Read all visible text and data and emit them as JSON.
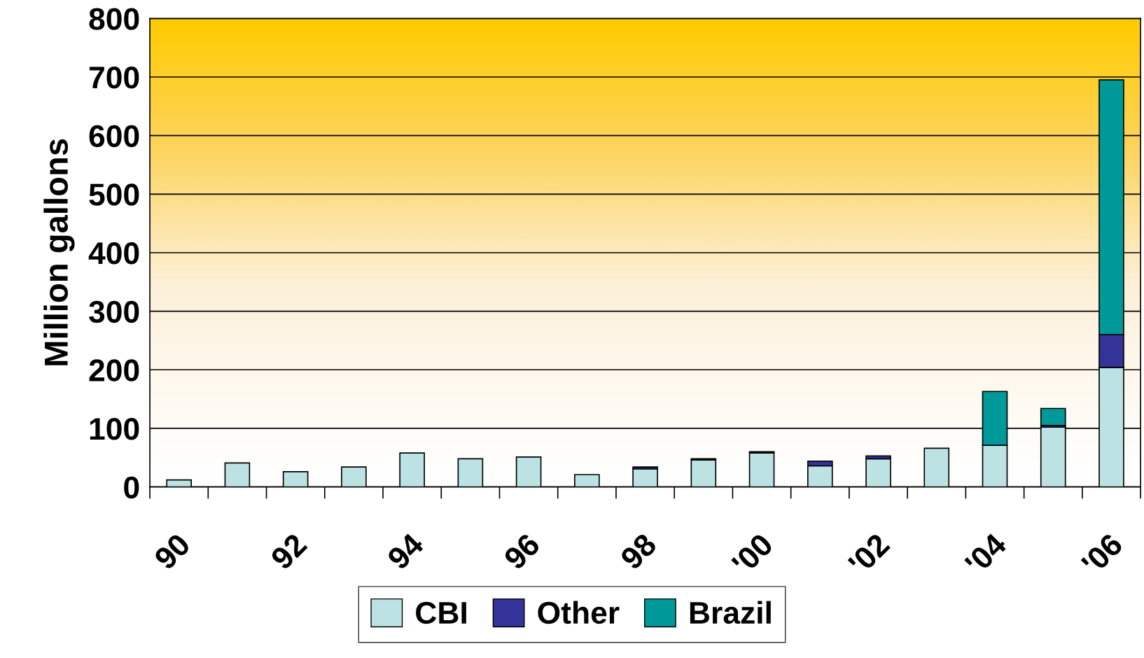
{
  "chart_data": {
    "type": "bar",
    "stacked": true,
    "ylabel": "Million gallons",
    "categories": [
      "90",
      null,
      "92",
      null,
      "94",
      null,
      "96",
      null,
      "98",
      null,
      "'00",
      null,
      "'02",
      null,
      "'04",
      null,
      "'06"
    ],
    "series": [
      {
        "name": "CBI",
        "color": "#bde2e3",
        "values": [
          12,
          41,
          26,
          34,
          58,
          48,
          51,
          21,
          31,
          46,
          58,
          36,
          48,
          66,
          71,
          102,
          204
        ]
      },
      {
        "name": "Other",
        "color": "#333399",
        "values": [
          null,
          null,
          null,
          null,
          null,
          null,
          null,
          null,
          3,
          2,
          2,
          8,
          5,
          null,
          null,
          3,
          56
        ]
      },
      {
        "name": "Brazil",
        "color": "#009999",
        "values": [
          null,
          null,
          null,
          null,
          null,
          null,
          null,
          null,
          null,
          null,
          null,
          null,
          null,
          null,
          92,
          29,
          435
        ]
      }
    ],
    "ylim": [
      0,
      800
    ],
    "yticks": [
      0,
      100,
      200,
      300,
      400,
      500,
      600,
      700,
      800
    ],
    "grid": "y",
    "legend": "bottom"
  }
}
